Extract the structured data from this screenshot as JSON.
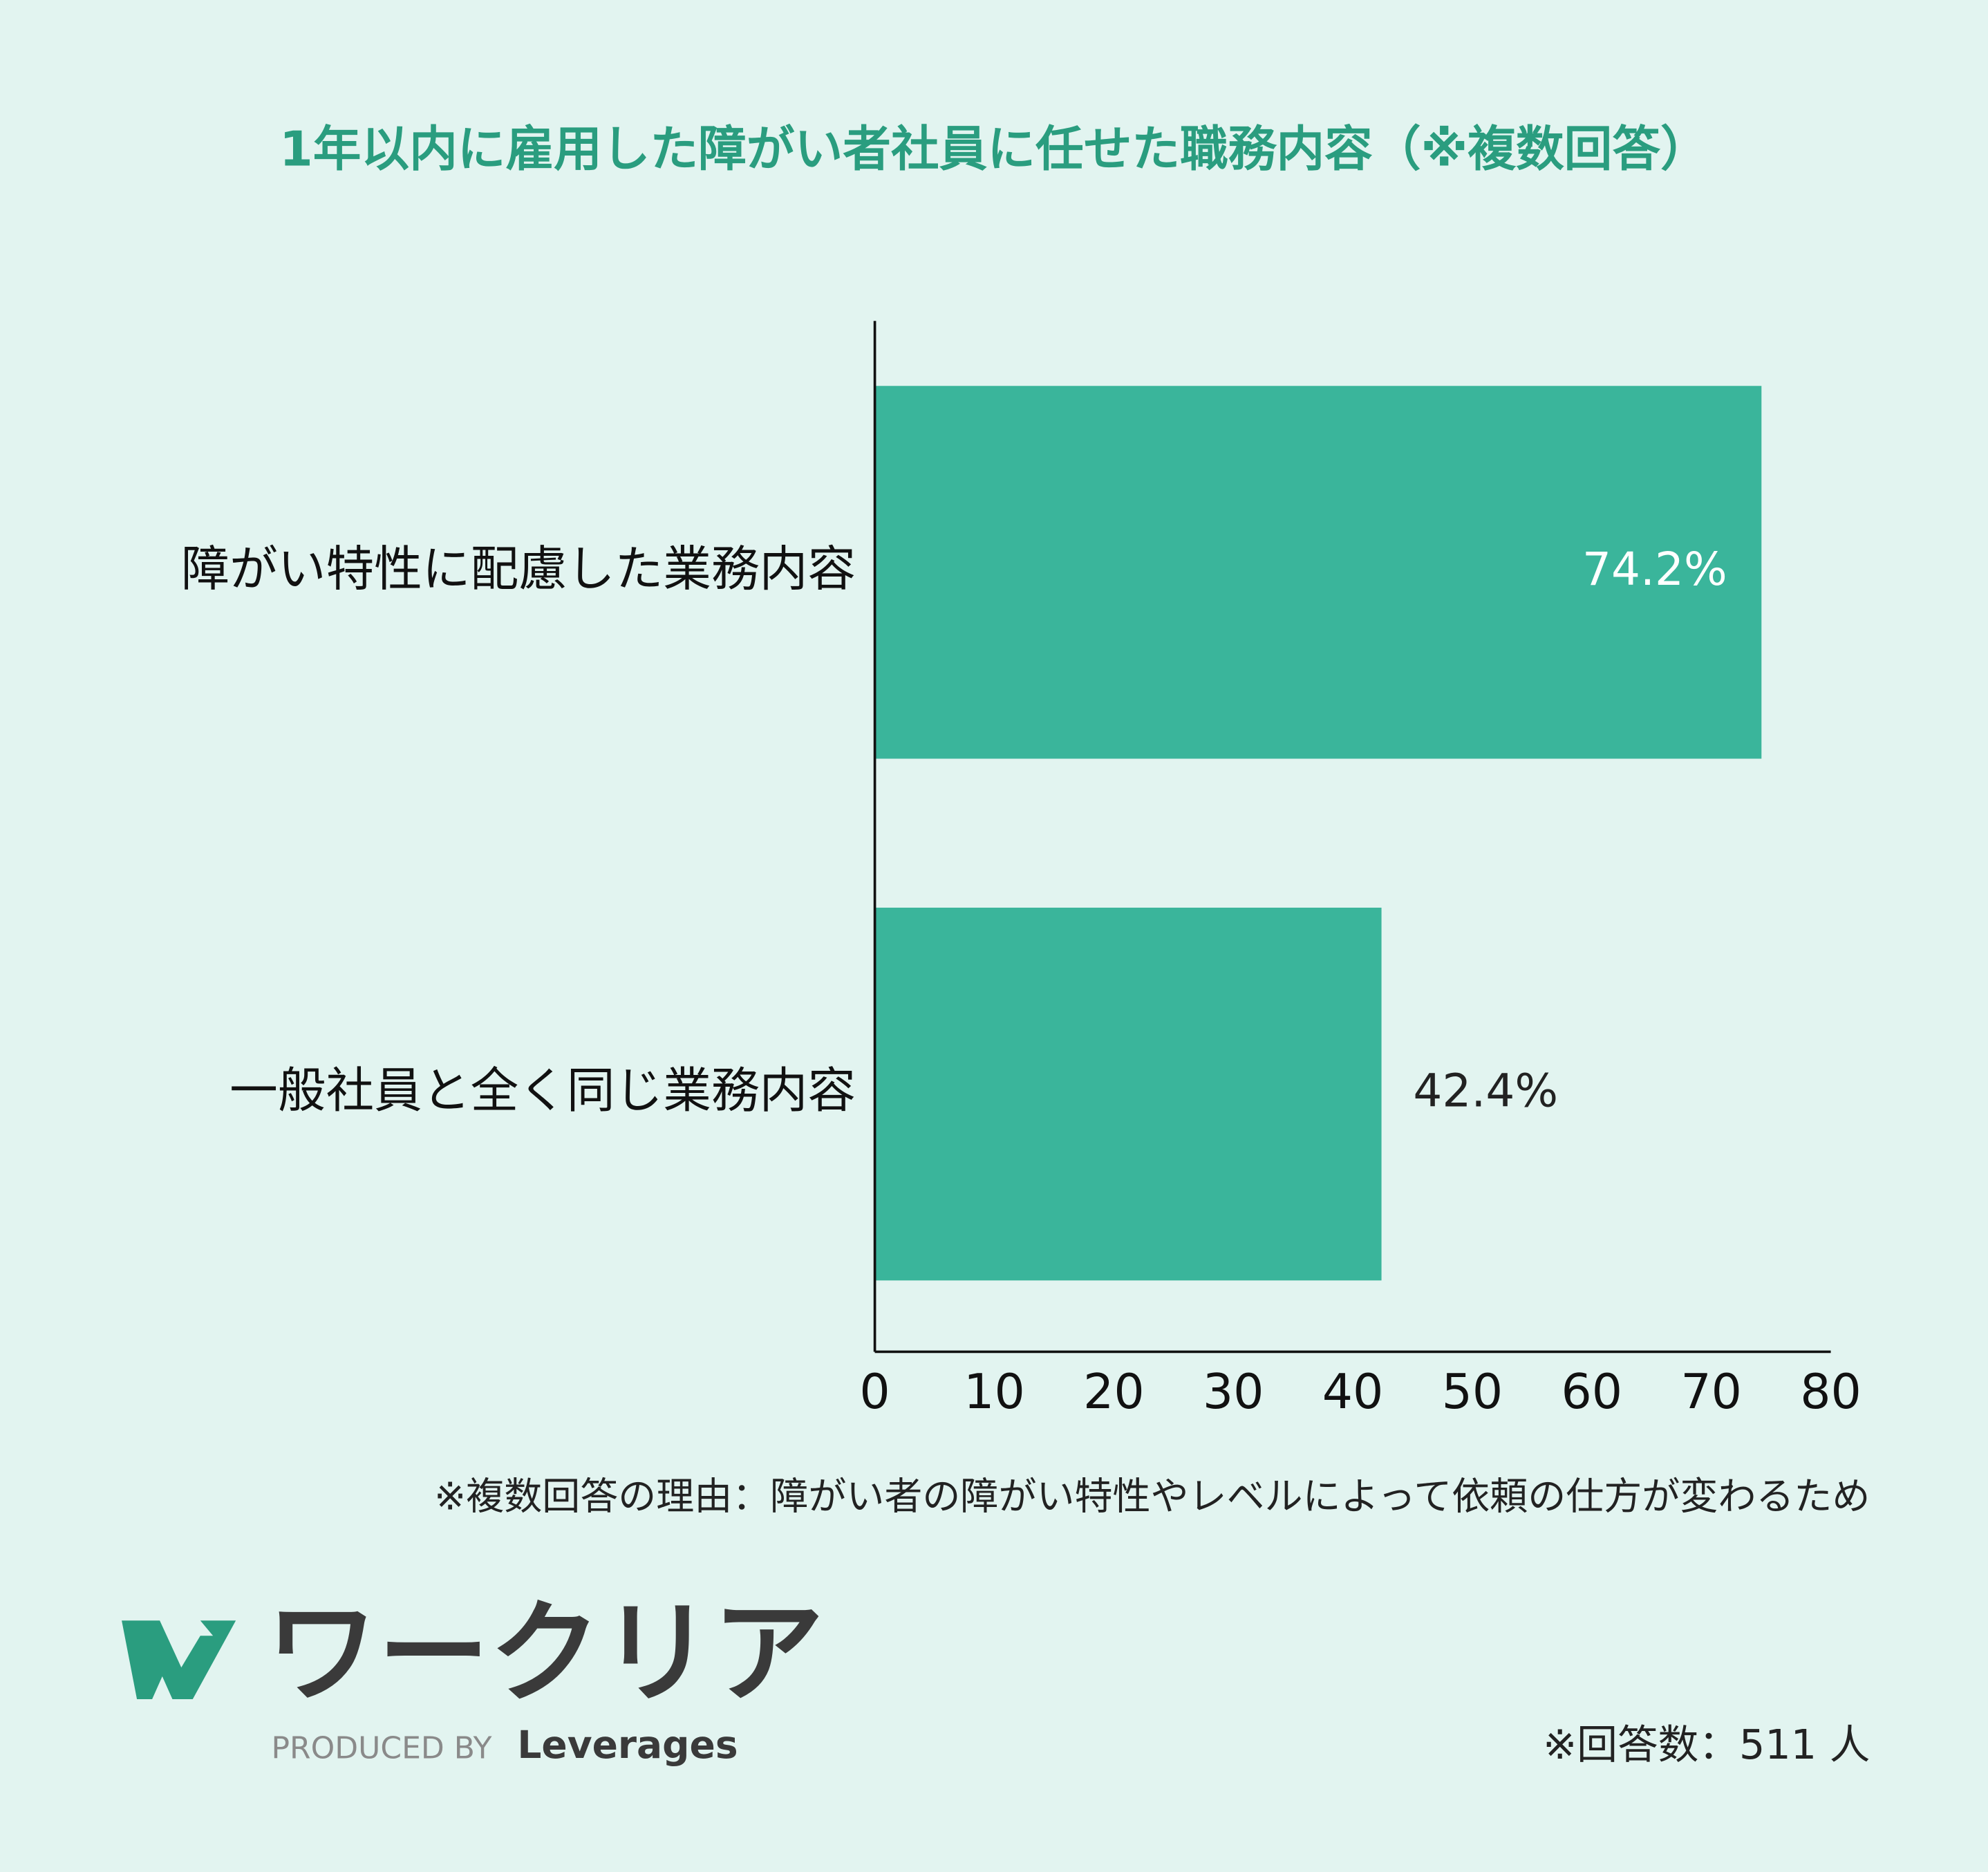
{
  "chart_data": {
    "type": "barh",
    "title": "1年以内に雇用した障がい者社員に任せた職務内容（※複数回答）",
    "categories": [
      "障がい特性に配慮した業務内容",
      "一般社員と全く同じ業務内容"
    ],
    "values": [
      74.2,
      42.4
    ],
    "value_labels": [
      "74.2%",
      "42.4%"
    ],
    "color": "#3ab59b",
    "xlim": [
      0,
      80
    ],
    "xticks": [
      0,
      10,
      20,
      30,
      40,
      50,
      60,
      70,
      80
    ],
    "note": "※複数回答の理由：障がい者の障がい特性やレベルによって依頼の仕方が変わるため",
    "respondents": "※回答数：511 人"
  },
  "logo": {
    "name": "ワークリア",
    "produced_by": "PRODUCED BY",
    "company": "Leverages"
  }
}
